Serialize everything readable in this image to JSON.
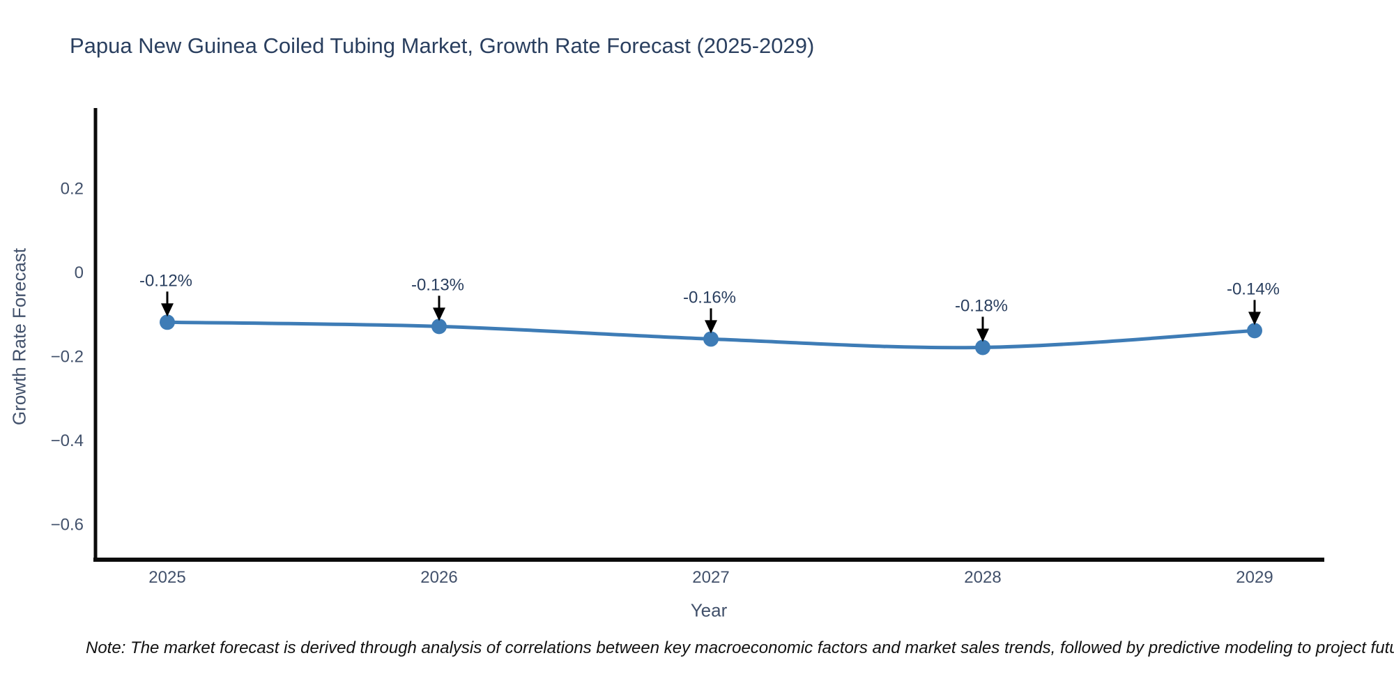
{
  "title": "Papua New Guinea Coiled Tubing Market, Growth Rate Forecast (2025-2029)",
  "note": "Note: The market forecast is derived through analysis of correlations between key macroeconomic factors and market sales trends, followed by predictive modeling to project future sales.",
  "chart_data": {
    "type": "line",
    "title": "Papua New Guinea Coiled Tubing Market, Growth Rate Forecast (2025-2029)",
    "xlabel": "Year",
    "ylabel": "Growth Rate Forecast",
    "x": [
      2025,
      2026,
      2027,
      2028,
      2029
    ],
    "series": [
      {
        "name": "Growth Rate Forecast",
        "values": [
          -0.12,
          -0.13,
          -0.16,
          -0.18,
          -0.14
        ]
      }
    ],
    "annotations": [
      "-0.12%",
      "-0.13%",
      "-0.16%",
      "-0.18%",
      "-0.14%"
    ],
    "x_tick_labels": [
      "2025",
      "2026",
      "2027",
      "2028",
      "2029"
    ],
    "y_ticks": [
      0.2,
      0,
      -0.2,
      -0.4,
      -0.6
    ],
    "y_tick_labels": [
      "0.2",
      "0",
      "−0.2",
      "−0.4",
      "−0.6"
    ],
    "ylim": [
      -0.69,
      0.39
    ],
    "grid": false,
    "legend": "none",
    "line_shape": "spline",
    "colors": {
      "line": "#3e7cb6",
      "marker": "#3e7cb6",
      "annotation_text": "#2a3f5f",
      "annotation_arrow": "#000000",
      "axis_line": "#0b0b0b",
      "tick_label": "#42516b",
      "title": "#2a3f5f"
    }
  }
}
